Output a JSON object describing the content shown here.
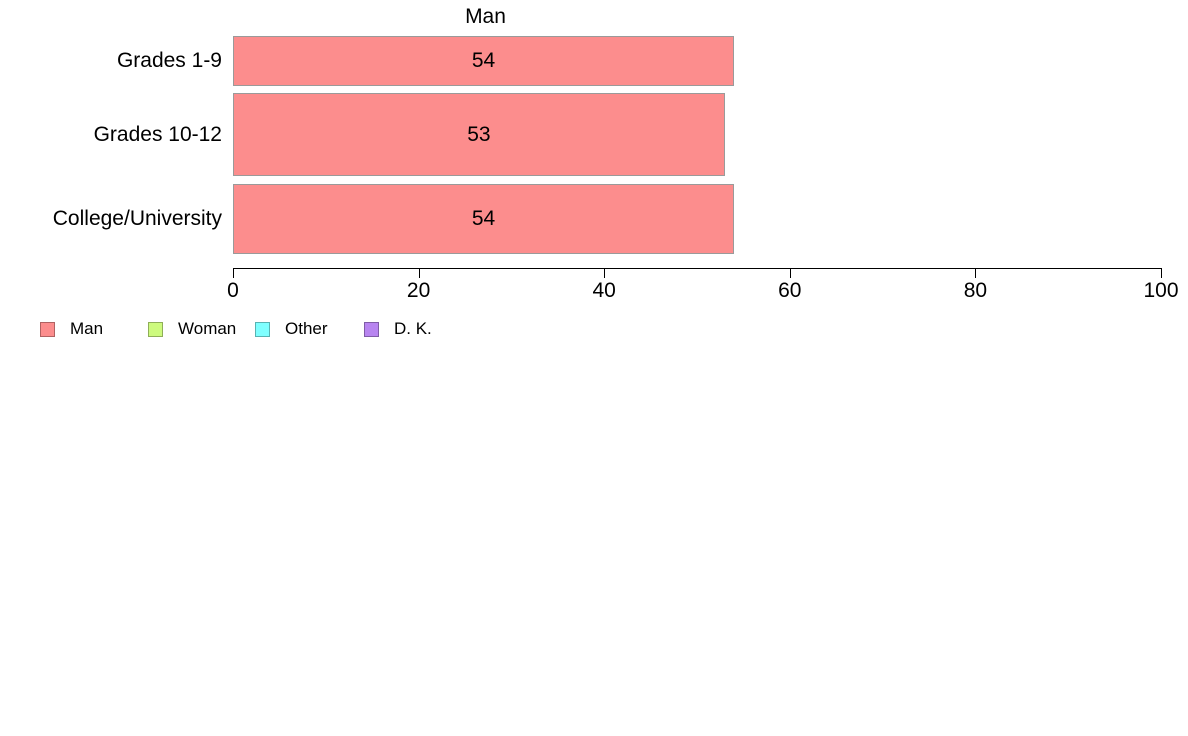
{
  "chart_data": {
    "type": "bar",
    "orientation": "horizontal",
    "title": "Man",
    "categories": [
      "Grades 1-9",
      "Grades 10-12",
      "College/University"
    ],
    "values": [
      54,
      53,
      54
    ],
    "bar_labels": [
      "54",
      "53",
      "54"
    ],
    "xlabel": "",
    "ylabel": "",
    "xlim": [
      0,
      100
    ],
    "xticks": [
      "0",
      "20",
      "40",
      "60",
      "80",
      "100"
    ],
    "grid": false,
    "legend_position": "bottom-left",
    "legend": [
      {
        "label": "Man",
        "color": "#FC8D8D"
      },
      {
        "label": "Woman",
        "color": "#CDFA7E"
      },
      {
        "label": "Other",
        "color": "#7FFFFF"
      },
      {
        "label": "D. K.",
        "color": "#B885F0"
      }
    ],
    "colors": {
      "bar_fill": "#FC8D8D",
      "bar_edge": "#9A9A9A",
      "axis": "#000000",
      "text": "#000000",
      "background": "#FFFFFF"
    }
  }
}
